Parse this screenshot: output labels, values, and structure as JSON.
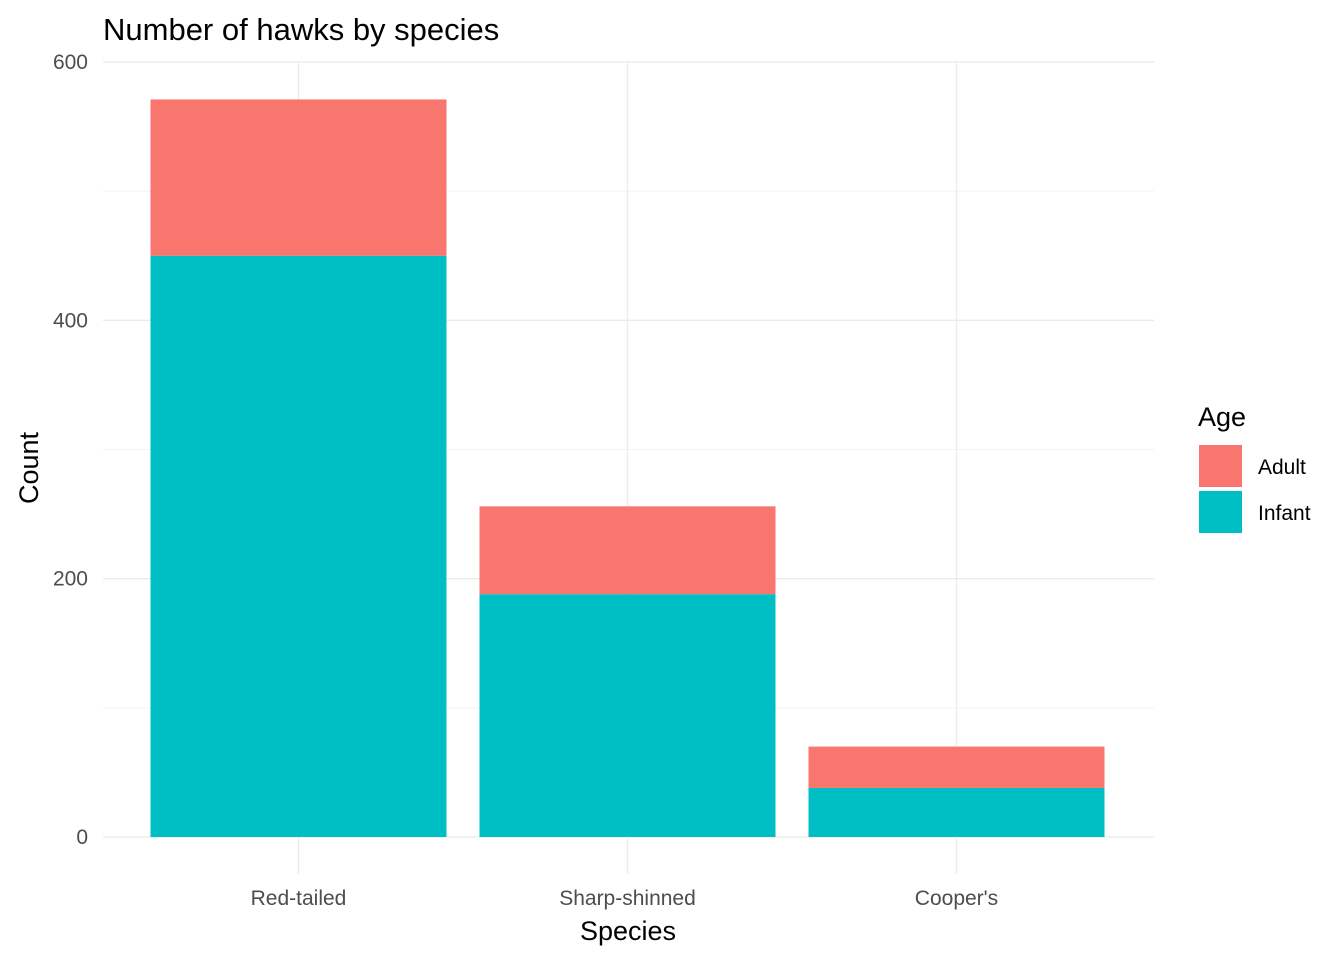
{
  "chart_data": {
    "type": "bar",
    "stacked": true,
    "title": "Number of hawks by species",
    "xlabel": "Species",
    "ylabel": "Count",
    "categories": [
      "Red-tailed",
      "Sharp-shinned",
      "Cooper's"
    ],
    "series": [
      {
        "name": "Infant",
        "values": [
          450,
          188,
          38
        ],
        "color": "#00BFC4"
      },
      {
        "name": "Adult",
        "values": [
          121,
          68,
          32
        ],
        "color": "#F8766D"
      }
    ],
    "ylim": [
      0,
      600
    ],
    "yticks": [
      0,
      200,
      400,
      600
    ],
    "legend": {
      "title": "Age",
      "entries": [
        "Adult",
        "Infant"
      ],
      "position": "right"
    },
    "grid": true
  }
}
